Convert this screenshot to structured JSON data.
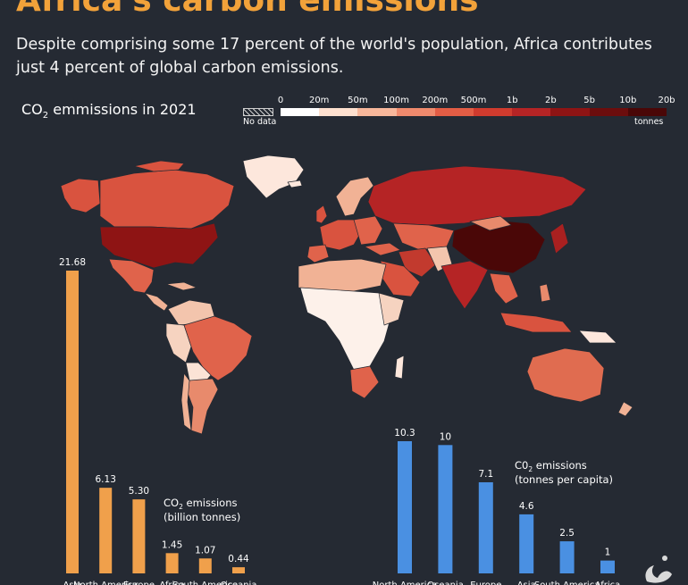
{
  "header": {
    "title": "Africa's carbon emissions",
    "subtitle": "Despite comprising some 17 percent of the world's population, Africa contributes just 4 percent of global carbon emissions."
  },
  "map": {
    "title_main": "CO",
    "title_sub": "2",
    "title_rest": " emmissions in 2021",
    "legend": {
      "ticks": [
        "0",
        "20m",
        "50m",
        "100m",
        "200m",
        "500m",
        "1b",
        "2b",
        "5b",
        "10b",
        "20b"
      ],
      "no_data_label": "No data",
      "unit_label": "tonnes",
      "colors": [
        "#ffffff",
        "#fde0cf",
        "#f7b79b",
        "#ef8a6d",
        "#e35d45",
        "#d03b2e",
        "#b52425",
        "#8e1414",
        "#6c0d0d",
        "#4a0707"
      ]
    }
  },
  "chart_data": [
    {
      "type": "bar",
      "title": "CO2 emissions (billion tonnes)",
      "title_main": "CO",
      "title_sub": "2",
      "title_rest": " emissions",
      "title_line2": "(billion tonnes)",
      "categories": [
        "Asia",
        "North America",
        "Europe",
        "Africa",
        "South America",
        "Oceania"
      ],
      "values": [
        21.68,
        6.13,
        5.3,
        1.45,
        1.07,
        0.44
      ],
      "value_labels": [
        "21.68",
        "6.13",
        "5.30",
        "1.45",
        "1.07",
        "0.44"
      ],
      "color": "#f0a04b",
      "ylim": [
        0,
        22
      ]
    },
    {
      "type": "bar",
      "title": "C02 emissions (tonnes per capita)",
      "title_main": "C0",
      "title_sub": "2",
      "title_rest": " emissions",
      "title_line2": "(tonnes per capita)",
      "categories": [
        "North America",
        "Oceania",
        "Europe",
        "Asia",
        "South America",
        "Africa"
      ],
      "values": [
        10.3,
        10,
        7.1,
        4.6,
        2.5,
        1
      ],
      "value_labels": [
        "10.3",
        "10",
        "7.1",
        "4.6",
        "2.5",
        "1"
      ],
      "color": "#4a90e2",
      "ylim": [
        0,
        10.3
      ]
    }
  ]
}
